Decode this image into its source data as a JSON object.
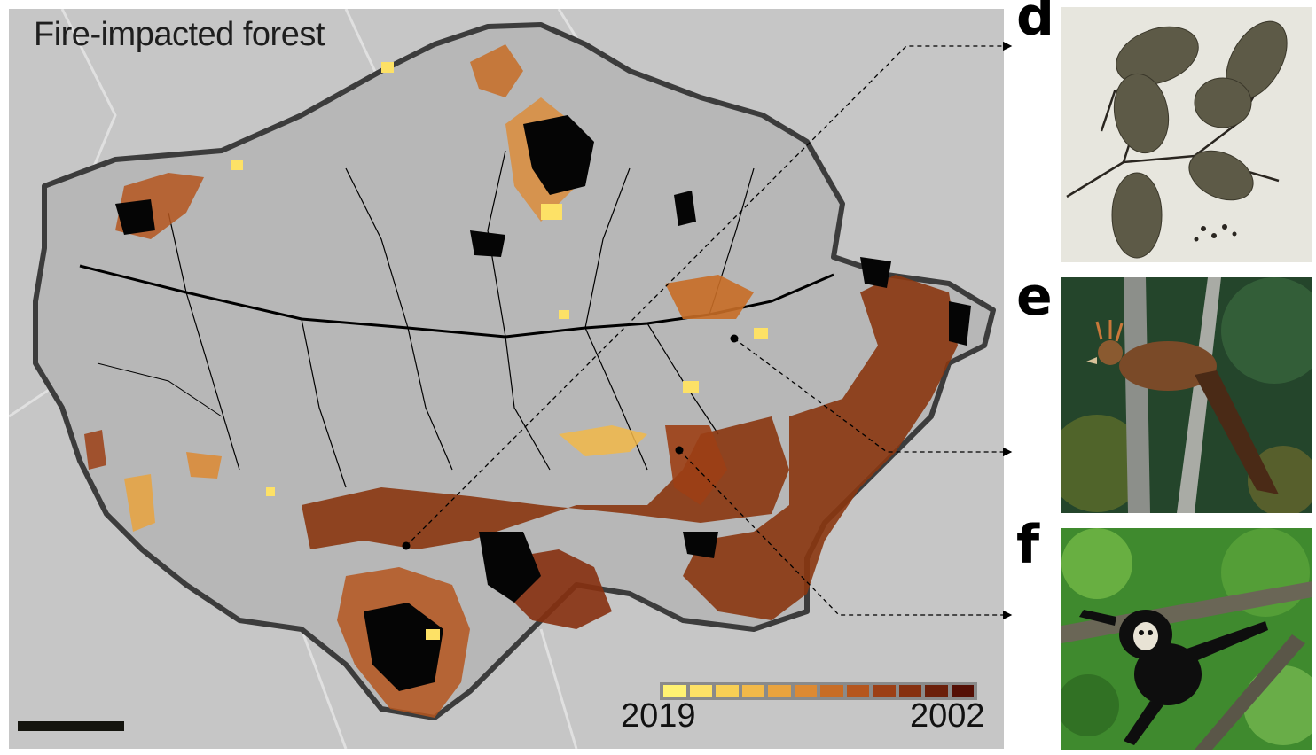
{
  "map": {
    "title": "Fire-impacted forest",
    "legend": {
      "label_left": "2019",
      "label_right": "2002",
      "colors": [
        "#fff272",
        "#fde166",
        "#f8cf55",
        "#f2b949",
        "#e9a33e",
        "#dd8a33",
        "#c86d26",
        "#b5561e",
        "#9c3f15",
        "#86300f",
        "#6b1f0a",
        "#540f05"
      ]
    },
    "colors": {
      "background": "#c6c6c6",
      "forest": "#b7b7b7",
      "forest_outline": "#3c3c3c",
      "borders": "#e0e0e0",
      "rivers": "#000000",
      "burned_dark": "#6e2a0a"
    }
  },
  "panels": [
    {
      "letter": "d",
      "icon": "herbarium-leaf-specimen"
    },
    {
      "letter": "e",
      "icon": "hoatzin-bird-photo"
    },
    {
      "letter": "f",
      "icon": "spider-monkey-photo"
    }
  ]
}
